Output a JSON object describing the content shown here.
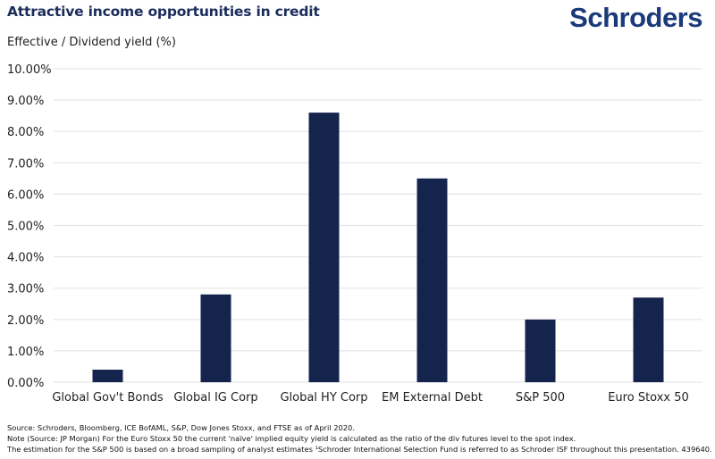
{
  "header": {
    "title": "Attractive income opportunities in credit",
    "logo_text": "Schroders",
    "y_axis_title": "Effective / Dividend yield (%)"
  },
  "chart_data": {
    "type": "bar",
    "title": "Attractive income opportunities in credit",
    "xlabel": "",
    "ylabel": "Effective / Dividend yield (%)",
    "ylim": [
      0,
      10
    ],
    "yticks": [
      0,
      1,
      2,
      3,
      4,
      5,
      6,
      7,
      8,
      9,
      10
    ],
    "ytick_labels": [
      "0.00%",
      "1.00%",
      "2.00%",
      "3.00%",
      "4.00%",
      "5.00%",
      "6.00%",
      "7.00%",
      "8.00%",
      "9.00%",
      "10.00%"
    ],
    "grid": true,
    "legend": "none",
    "categories": [
      "Global Gov't Bonds",
      "Global IG Corp",
      "Global HY Corp",
      "EM External Debt",
      "S&P 500",
      "Euro Stoxx 50"
    ],
    "values": [
      0.4,
      2.8,
      8.6,
      6.5,
      2.0,
      2.7
    ],
    "bar_color": "#15244d",
    "grid_color": "#e6e6e6"
  },
  "footnotes": [
    "Source: Schroders, Bloomberg, ICE BofAML, S&P, Dow Jones Stoxx, and FTSE as of April 2020.",
    "Note (Source: JP Morgan) For the Euro Stoxx 50 the current 'naïve' implied equity yield is calculated as the ratio of the div futures level to the spot index.",
    "The estimation for the S&P 500 is based on a broad sampling of analyst estimates ¹Schroder International Selection Fund is referred to as Schroder ISF throughout this presentation. 439640."
  ]
}
